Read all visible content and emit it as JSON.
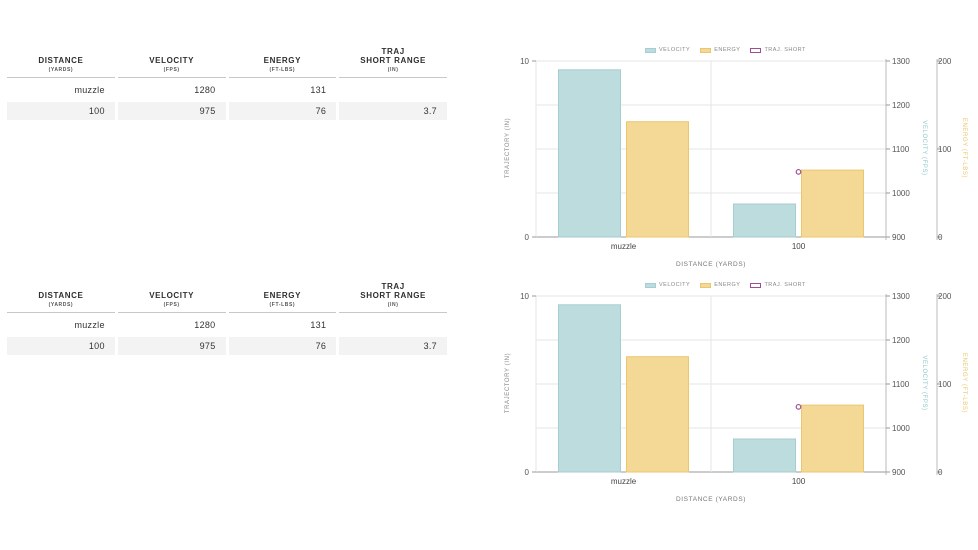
{
  "table": {
    "headers": [
      {
        "line1": "DISTANCE",
        "line2": "",
        "sub": "(YARDS)"
      },
      {
        "line1": "VELOCITY",
        "line2": "",
        "sub": "(FPS)"
      },
      {
        "line1": "ENERGY",
        "line2": "",
        "sub": "(FT-LBS)"
      },
      {
        "line1": "TRAJ",
        "line2": "SHORT RANGE",
        "sub": "(IN)"
      }
    ],
    "rows": [
      [
        "muzzle",
        "1280",
        "131",
        ""
      ],
      [
        "100",
        "975",
        "76",
        "3.7"
      ]
    ]
  },
  "colors": {
    "velocity": "#bddcde",
    "velocity_border": "#a6cdd0",
    "energy": "#f4d996",
    "energy_border": "#ebc66c",
    "trajectory": "#9b4d96"
  },
  "chart_data": {
    "type": "bar",
    "categories": [
      "muzzle",
      "100"
    ],
    "xlabel": "DISTANCE (YARDS)",
    "legend": {
      "placement": "top",
      "entries": [
        "VELOCITY",
        "ENERGY",
        "TRAJ. SHORT"
      ]
    },
    "series": [
      {
        "name": "VELOCITY",
        "type": "bar",
        "axis": "VELOCITY (FPS)",
        "values": [
          1280,
          975
        ]
      },
      {
        "name": "ENERGY",
        "type": "bar",
        "axis": "ENERGY (FT-LBS)",
        "values": [
          131,
          76
        ]
      },
      {
        "name": "TRAJ. SHORT",
        "type": "scatter",
        "axis": "TRAJECTORY (IN)",
        "values": [
          null,
          3.7
        ]
      }
    ],
    "axes": {
      "trajectory": {
        "label": "TRAJECTORY (IN)",
        "range": [
          0,
          10
        ],
        "ticks": [
          "0",
          "10"
        ]
      },
      "velocity": {
        "label": "VELOCITY (FPS)",
        "range": [
          900,
          1300
        ],
        "ticks": [
          "900",
          "1000",
          "1100",
          "1200",
          "1300"
        ]
      },
      "energy": {
        "label": "ENERGY (FT-LBS)",
        "range": [
          0,
          200
        ],
        "ticks": [
          "0",
          "100",
          "200"
        ]
      }
    },
    "grid": true
  }
}
